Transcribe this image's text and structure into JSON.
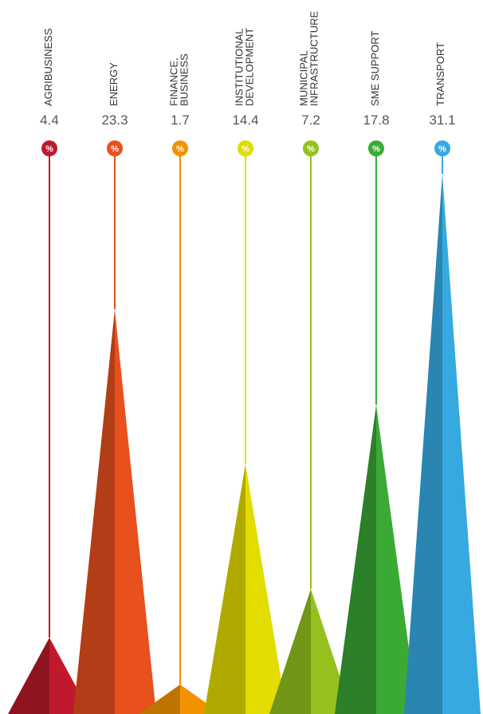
{
  "chart_data": {
    "type": "bar",
    "categories": [
      [
        "AGRIBUSINESS"
      ],
      [
        "ENERGY"
      ],
      [
        "FINANCE,",
        "BUSINESS"
      ],
      [
        "INSTITUTIONAL",
        "DEVELOPMENT"
      ],
      [
        "MUNICIPAL",
        "INFRASTRUCTURE"
      ],
      [
        "SME SUPPORT"
      ],
      [
        "TRANSPORT"
      ]
    ],
    "values": [
      4.4,
      23.3,
      1.7,
      14.4,
      7.2,
      17.8,
      31.1
    ],
    "value_labels": [
      "4.4",
      "23.3",
      "1.7",
      "14.4",
      "7.2",
      "17.8",
      "31.1"
    ],
    "unit_symbol": "%",
    "colors": [
      "#c0192d",
      "#e8501e",
      "#f39200",
      "#e2dc00",
      "#95c11f",
      "#3aaa35",
      "#36a9e1"
    ],
    "shade_colors": [
      "#8e1420",
      "#b33d17",
      "#c07400",
      "#b0aa00",
      "#719618",
      "#2b8029",
      "#2a85b2"
    ],
    "ylim": [
      0,
      31.1
    ]
  }
}
